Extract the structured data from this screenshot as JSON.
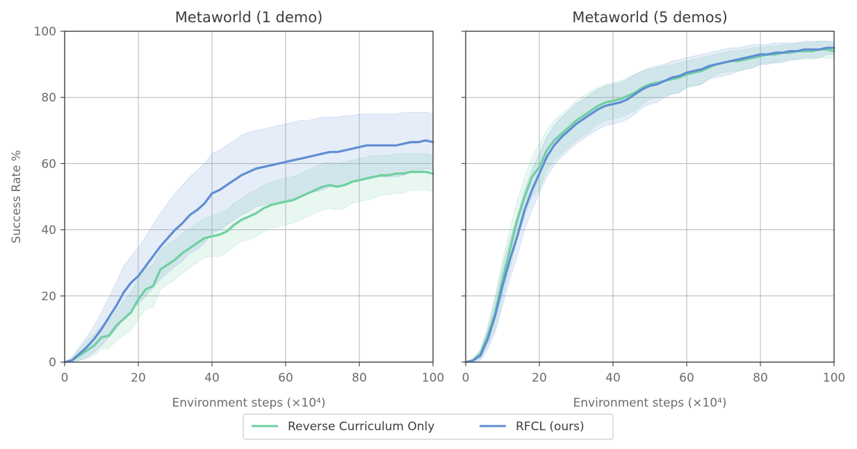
{
  "chart_data": [
    {
      "type": "line",
      "title": "Metaworld (1 demo)",
      "xlabel": "Environment steps (×10⁴)",
      "ylabel": "Success Rate %",
      "xlim": [
        0,
        100
      ],
      "ylim": [
        0,
        100
      ],
      "xticks": [
        "0",
        "20",
        "40",
        "60",
        "80",
        "100"
      ],
      "yticks": [
        "0",
        "20",
        "40",
        "60",
        "80",
        "100"
      ],
      "grid": true,
      "series": [
        {
          "name": "Reverse Curriculum Only",
          "color": "#6fcf9f",
          "x": [
            0,
            2,
            4,
            6,
            8,
            10,
            12,
            14,
            16,
            18,
            20,
            22,
            24,
            26,
            28,
            30,
            32,
            34,
            36,
            38,
            40,
            42,
            44,
            46,
            48,
            50,
            52,
            54,
            56,
            58,
            60,
            62,
            64,
            66,
            68,
            70,
            72,
            74,
            76,
            78,
            80,
            82,
            84,
            86,
            88,
            90,
            92,
            94,
            96,
            98,
            100
          ],
          "y": [
            0,
            0.5,
            2,
            3.5,
            5,
            7.5,
            8,
            11,
            13,
            15,
            19,
            22,
            23,
            28,
            29.5,
            31,
            33,
            34.5,
            36,
            37.5,
            38,
            38.5,
            39.5,
            41.5,
            43,
            44,
            45,
            46.5,
            47.5,
            48,
            48.5,
            49,
            50,
            51,
            52,
            53,
            53.5,
            53,
            53.5,
            54.5,
            55,
            55.5,
            56,
            56.5,
            56.5,
            57,
            57,
            57.5,
            57.5,
            57.5,
            57
          ],
          "upper": [
            0,
            1,
            4,
            6.5,
            8.5,
            11,
            12.5,
            15.5,
            18.5,
            21,
            25,
            28,
            29.5,
            34,
            35.5,
            37,
            39,
            40.5,
            42,
            43.5,
            44,
            45,
            46,
            48,
            49.5,
            51,
            52,
            53.5,
            54.5,
            55,
            55.5,
            56,
            57,
            58,
            59,
            60,
            60.5,
            60,
            60.5,
            61,
            61.5,
            62,
            62.5,
            62.5,
            62.5,
            63,
            63,
            63,
            63,
            63,
            62.5
          ],
          "lower": [
            0,
            0,
            0.5,
            1,
            2,
            4,
            4,
            6.5,
            8,
            9.5,
            13,
            16,
            16.5,
            22,
            23.5,
            25,
            27,
            28.5,
            30,
            31.5,
            32,
            32,
            33,
            35,
            36.5,
            37,
            38,
            39.5,
            40.5,
            41,
            41.5,
            42,
            43,
            44,
            45,
            46,
            46.5,
            46,
            46.5,
            48,
            48.5,
            49,
            49.5,
            50.5,
            50.5,
            51,
            51,
            52,
            52,
            52,
            51.5
          ]
        },
        {
          "name": "RFCL (ours)",
          "color": "#5f8dd3",
          "x": [
            0,
            2,
            4,
            6,
            8,
            10,
            12,
            14,
            16,
            18,
            20,
            22,
            24,
            26,
            28,
            30,
            32,
            34,
            36,
            38,
            40,
            42,
            44,
            46,
            48,
            50,
            52,
            54,
            56,
            58,
            60,
            62,
            64,
            66,
            68,
            70,
            72,
            74,
            76,
            78,
            80,
            82,
            84,
            86,
            88,
            90,
            92,
            94,
            96,
            98,
            100
          ],
          "y": [
            0,
            0.5,
            2.5,
            4.5,
            7,
            10,
            13.5,
            17,
            21,
            24,
            26,
            29,
            32,
            35,
            37.5,
            40,
            42,
            44.5,
            46,
            48,
            51,
            52,
            53.5,
            55,
            56.5,
            57.5,
            58.5,
            59,
            59.5,
            60,
            60.5,
            61,
            61.5,
            62,
            62.5,
            63,
            63.5,
            63.5,
            64,
            64.5,
            65,
            65.5,
            65.5,
            65.5,
            65.5,
            65.5,
            66,
            66.5,
            66.5,
            67,
            66.5
          ],
          "upper": [
            0,
            1.5,
            4.5,
            7.5,
            11,
            15,
            19.5,
            24,
            29,
            32,
            34.5,
            38,
            41.5,
            45,
            48,
            51,
            53.5,
            56,
            58,
            60,
            63,
            64,
            65.5,
            67,
            68.5,
            69.5,
            70,
            70.5,
            71,
            71.5,
            72,
            72.5,
            73,
            73,
            73.5,
            74,
            74,
            74,
            74.5,
            74.5,
            75,
            75,
            75,
            75,
            75,
            75,
            75.5,
            75.5,
            75.5,
            75.5,
            75
          ],
          "lower": [
            0,
            0,
            0.5,
            1.5,
            3,
            5,
            7.5,
            10,
            13,
            16,
            17.5,
            20,
            22.5,
            25,
            27,
            29,
            30.5,
            33,
            34,
            36,
            39,
            40,
            41.5,
            43,
            44.5,
            45.5,
            47,
            47.5,
            48,
            48.5,
            49,
            49.5,
            50,
            51,
            51.5,
            52,
            53,
            53,
            53.5,
            54.5,
            55,
            56,
            56,
            56,
            56,
            56,
            56.5,
            57.5,
            57.5,
            58.5,
            58
          ]
        }
      ]
    },
    {
      "type": "line",
      "title": "Metaworld (5 demos)",
      "xlabel": "Environment steps (×10⁴)",
      "ylabel": "",
      "xlim": [
        0,
        100
      ],
      "ylim": [
        0,
        100
      ],
      "xticks": [
        "0",
        "20",
        "40",
        "60",
        "80",
        "100"
      ],
      "yticks": [],
      "grid": true,
      "series": [
        {
          "name": "Reverse Curriculum Only",
          "color": "#6fcf9f",
          "x": [
            0,
            2,
            4,
            6,
            8,
            10,
            12,
            14,
            16,
            18,
            20,
            22,
            24,
            26,
            28,
            30,
            32,
            34,
            36,
            38,
            40,
            42,
            44,
            46,
            48,
            50,
            52,
            54,
            56,
            58,
            60,
            62,
            64,
            66,
            68,
            70,
            72,
            74,
            76,
            78,
            80,
            82,
            84,
            86,
            88,
            90,
            92,
            94,
            96,
            98,
            100
          ],
          "y": [
            0,
            0.5,
            2.5,
            8,
            15,
            25,
            34,
            43,
            50,
            56,
            59,
            64,
            67,
            69,
            71,
            73,
            74.5,
            76,
            77.5,
            78.5,
            79,
            79.5,
            80.5,
            81.5,
            83,
            84,
            84.5,
            85,
            85.5,
            86,
            87,
            87.5,
            88,
            89,
            90,
            90.5,
            91,
            91,
            91.5,
            92,
            92.5,
            93,
            93,
            93.5,
            93.5,
            94,
            94,
            94,
            94.5,
            94.5,
            94
          ],
          "upper": [
            0,
            1,
            4,
            11,
            20,
            31,
            40,
            49,
            56,
            62,
            66,
            70,
            73,
            75,
            77,
            79,
            80.5,
            82,
            83,
            84,
            84.5,
            85,
            86,
            87,
            88,
            88.5,
            89,
            89.5,
            90,
            90.5,
            91,
            91.5,
            92,
            92.5,
            93,
            93.5,
            94,
            94,
            94.5,
            95,
            95,
            95.5,
            95.5,
            96,
            96,
            96.5,
            96.5,
            96.5,
            97,
            97,
            96.5
          ],
          "lower": [
            0,
            0,
            1,
            5,
            10,
            19,
            28,
            37,
            44,
            50,
            52,
            58,
            61,
            63,
            65,
            67,
            68.5,
            70,
            72,
            73,
            73.5,
            74,
            75,
            76,
            78,
            79.5,
            80,
            80.5,
            81,
            81.5,
            83,
            83.5,
            84,
            85.5,
            87,
            87.5,
            88,
            88,
            88.5,
            89,
            90,
            90.5,
            90.5,
            91,
            91,
            91.5,
            91.5,
            91.5,
            92,
            92,
            91.5
          ]
        },
        {
          "name": "RFCL (ours)",
          "color": "#5f8dd3",
          "x": [
            0,
            2,
            4,
            6,
            8,
            10,
            12,
            14,
            16,
            18,
            20,
            22,
            24,
            26,
            28,
            30,
            32,
            34,
            36,
            38,
            40,
            42,
            44,
            46,
            48,
            50,
            52,
            54,
            56,
            58,
            60,
            62,
            64,
            66,
            68,
            70,
            72,
            74,
            76,
            78,
            80,
            82,
            84,
            86,
            88,
            90,
            92,
            94,
            96,
            98,
            100
          ],
          "y": [
            0,
            0.5,
            2,
            7,
            14,
            23,
            31,
            38,
            46,
            52,
            57,
            62,
            65.5,
            68,
            70,
            72,
            73.5,
            75,
            76.5,
            77.5,
            78,
            78.5,
            79.5,
            81,
            82.5,
            83.5,
            84,
            85,
            86,
            86.5,
            87.5,
            88,
            88.5,
            89.5,
            90,
            90.5,
            91,
            91.5,
            92,
            92.5,
            93,
            93,
            93.5,
            93.5,
            94,
            94,
            94.5,
            94.5,
            94.5,
            95,
            95
          ],
          "upper": [
            0,
            1,
            3.5,
            10,
            19,
            29,
            37,
            44,
            52,
            58,
            63,
            68,
            71.5,
            74,
            76,
            78,
            79.5,
            81,
            82.5,
            83.5,
            84,
            84.5,
            85.5,
            87,
            88,
            89,
            89.5,
            90,
            91,
            91.5,
            92,
            92.5,
            93,
            93.5,
            94,
            94.5,
            95,
            95,
            95.5,
            96,
            96,
            96,
            96.5,
            96.5,
            96.5,
            96.5,
            97,
            97,
            97,
            97,
            97
          ],
          "lower": [
            0,
            0,
            0.5,
            4,
            9,
            17,
            25,
            32,
            40,
            46,
            51,
            56,
            59.5,
            62,
            64,
            66,
            67.5,
            69,
            70.5,
            71.5,
            72,
            72.5,
            73.5,
            75,
            77,
            78,
            78.5,
            80,
            81,
            81.5,
            83,
            83.5,
            84,
            85.5,
            86,
            86.5,
            87,
            88,
            88.5,
            89,
            90,
            90,
            90.5,
            90.5,
            91.5,
            91.5,
            92,
            92,
            92,
            93,
            93
          ]
        }
      ]
    }
  ],
  "legend": {
    "placement": "bottom-center",
    "entries": [
      {
        "label": "Reverse Curriculum Only",
        "color": "#6fcf9f"
      },
      {
        "label": "RFCL (ours)",
        "color": "#5f8dd3"
      }
    ]
  }
}
